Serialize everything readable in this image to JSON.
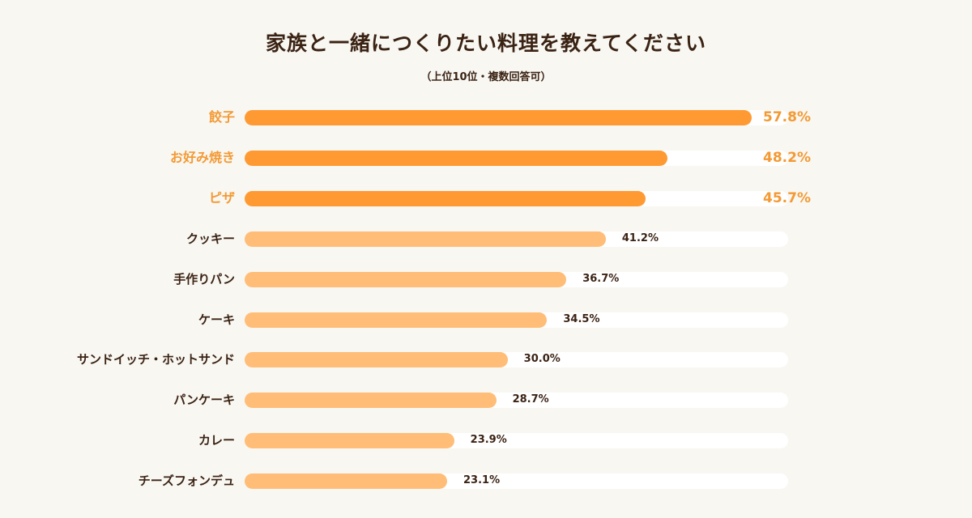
{
  "header": {
    "title": "家族と一緒につくりたい料理を教えてください",
    "subtitle": "（上位10位・複数回答可）"
  },
  "colors": {
    "background": "#f8f7f2",
    "top3_bar": "#ff9a33",
    "other_bar": "#ffbd77",
    "track": "#ffffff",
    "top3_text": "#f39a34",
    "text": "#3b2314"
  },
  "chart_data": {
    "type": "bar",
    "orientation": "horizontal",
    "title": "家族と一緒につくりたい料理を教えてください",
    "subtitle": "（上位10位・複数回答可）",
    "categories": [
      "餃子",
      "お好み焼き",
      "ピザ",
      "クッキー",
      "手作りパン",
      "ケーキ",
      "サンドイッチ・ホットサンド",
      "パンケーキ",
      "カレー",
      "チーズフォンデュ"
    ],
    "values": [
      57.8,
      48.2,
      45.7,
      41.2,
      36.7,
      34.5,
      30.0,
      28.7,
      23.9,
      23.1
    ],
    "value_labels": [
      "57.8%",
      "48.2%",
      "45.7%",
      "41.2%",
      "36.7%",
      "34.5%",
      "30.0%",
      "28.7%",
      "23.9%",
      "23.1%"
    ],
    "highlighted_top": 3,
    "xlim": [
      0,
      62
    ],
    "grid": false
  }
}
